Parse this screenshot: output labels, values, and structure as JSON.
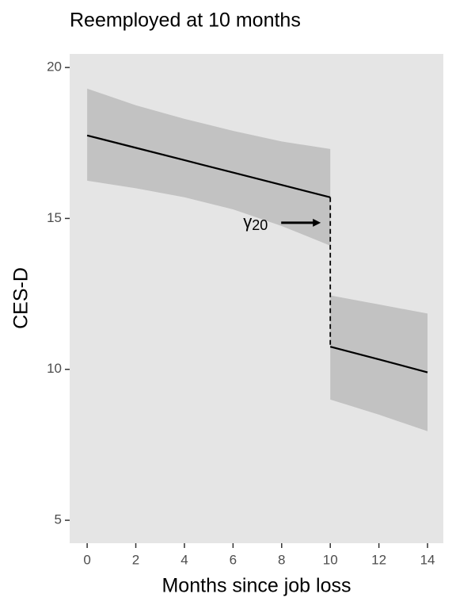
{
  "chart_data": {
    "type": "line",
    "title": "Reemployed at 10 months",
    "x_label": "Months since job loss",
    "y_label": "CES-D",
    "annotation": {
      "symbol": "γ",
      "subscript": "20"
    },
    "xlim": [
      -0.72,
      14.65
    ],
    "ylim": [
      4.24,
      20.45
    ],
    "xticks": [
      0,
      2,
      4,
      6,
      8,
      10,
      12,
      14
    ],
    "yticks": [
      5,
      10,
      15,
      20
    ],
    "line_color": "#000000",
    "band_color": "#c2c2c2",
    "background": "#e5e5e5",
    "series": [
      {
        "x": [
          0,
          2,
          4,
          6,
          8,
          10
        ],
        "values": [
          17.75,
          17.34,
          16.93,
          16.52,
          16.11,
          15.7
        ],
        "upper": [
          19.3,
          18.75,
          18.3,
          17.9,
          17.55,
          17.3
        ],
        "lower": [
          16.25,
          16.0,
          15.7,
          15.3,
          14.75,
          14.1
        ]
      },
      {
        "x": [
          10,
          12,
          14
        ],
        "values": [
          10.75,
          10.33,
          9.9
        ],
        "upper": [
          12.45,
          12.15,
          11.85
        ],
        "lower": [
          9.0,
          8.5,
          7.95
        ]
      }
    ]
  }
}
